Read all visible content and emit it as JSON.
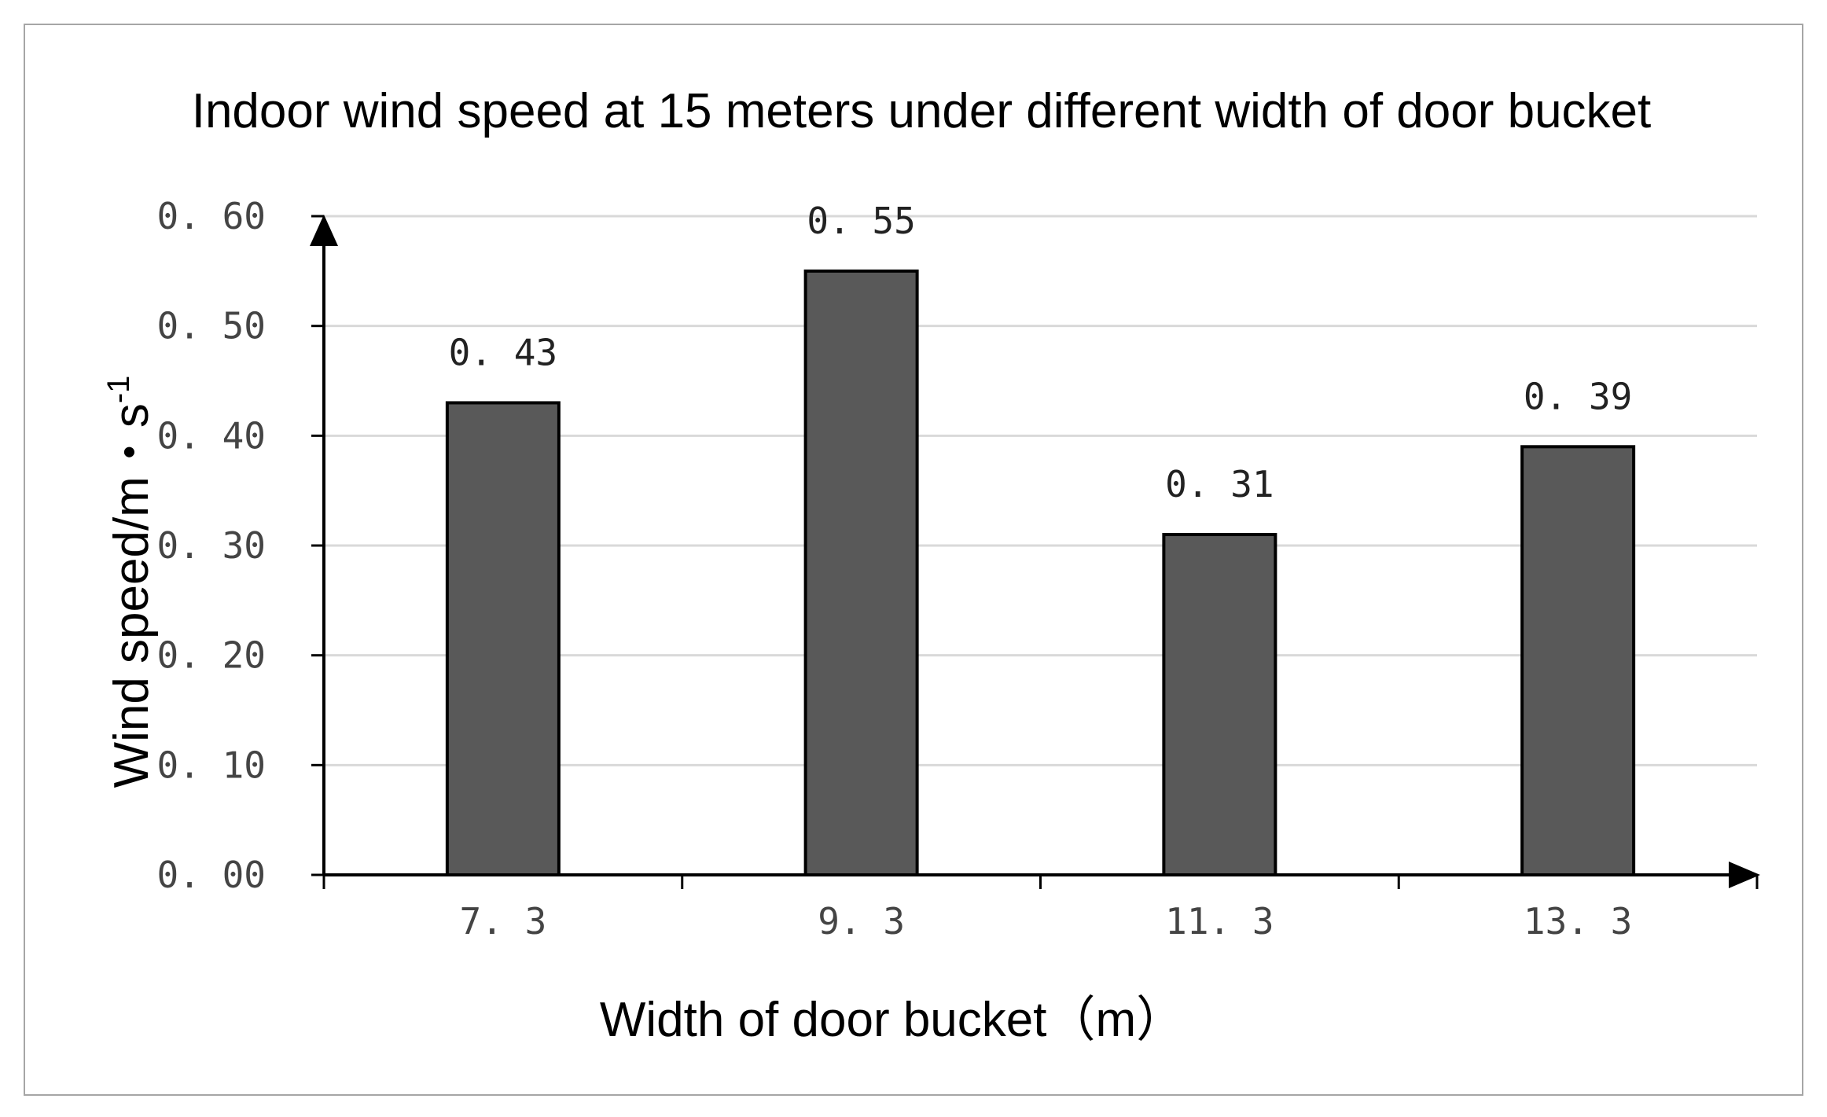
{
  "chart_data": {
    "type": "bar",
    "title": "Indoor wind speed at 15 meters under different width of door bucket",
    "xlabel": "Width of door bucket（m）",
    "ylabel": "Wind speed/m・s",
    "ylabel_superscript": "-1",
    "categories": [
      "7. 3",
      "9. 3",
      "11. 3",
      "13. 3"
    ],
    "values": [
      0.43,
      0.55,
      0.31,
      0.39
    ],
    "data_labels": [
      "0. 43",
      "0. 55",
      "0. 31",
      "0. 39"
    ],
    "ylim": [
      0,
      0.6
    ],
    "yticks": [
      0,
      0.1,
      0.2,
      0.3,
      0.4,
      0.5,
      0.6
    ],
    "ytick_labels": [
      "0. 00",
      "0. 10",
      "0. 20",
      "0. 30",
      "0. 40",
      "0. 50",
      "0. 60"
    ],
    "grid": true,
    "legend": "none",
    "bar_color": "#595959",
    "grid_color": "#d9d9d9"
  }
}
